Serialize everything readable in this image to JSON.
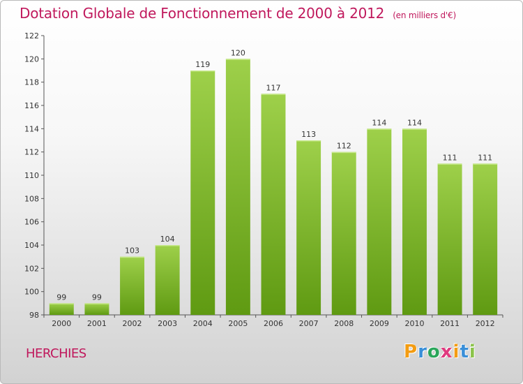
{
  "title": "Dotation Globale de Fonctionnement de 2000 à 2012",
  "subtitle": "(en milliers d'€)",
  "commune": "HERCHIES",
  "logo": {
    "letters": [
      "P",
      "r",
      "o",
      "x",
      "i",
      "t",
      "i"
    ],
    "colors": [
      "#f39c12",
      "#3a8fd8",
      "#2aa65a",
      "#e03a7f",
      "#f39c12",
      "#3a8fd8",
      "#8bc34a"
    ]
  },
  "colors": {
    "title": "#c0185c",
    "bar_light": "#9ed04a",
    "bar_dark": "#5f9a12",
    "axis": "#555555"
  },
  "chart_data": {
    "type": "bar",
    "categories": [
      "2000",
      "2001",
      "2002",
      "2003",
      "2004",
      "2005",
      "2006",
      "2007",
      "2008",
      "2009",
      "2010",
      "2011",
      "2012"
    ],
    "values": [
      99,
      99,
      103,
      104,
      119,
      120,
      117,
      113,
      112,
      114,
      114,
      111,
      111
    ],
    "data_labels": [
      "99",
      "99",
      "103",
      "104",
      "119",
      "120",
      "117",
      "113",
      "112",
      "114",
      "114",
      "111",
      "111"
    ],
    "ylim": [
      98,
      122
    ],
    "yticks": [
      98,
      100,
      102,
      104,
      106,
      108,
      110,
      112,
      114,
      116,
      118,
      120,
      122
    ],
    "grid": false,
    "xlabel": "",
    "ylabel": ""
  }
}
